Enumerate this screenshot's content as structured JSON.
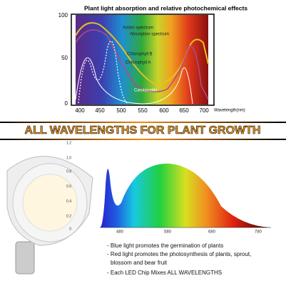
{
  "top_chart": {
    "title": "Plant light absorption and relative photochemical effects",
    "y_labels": [
      "100",
      "50",
      "0"
    ],
    "x_labels": [
      "400",
      "500",
      "600",
      "700"
    ],
    "x_extra_labels": [
      "450",
      "550",
      "650"
    ],
    "x_unit": "Wavelength(nm)",
    "curve_labels": [
      "Action spectrum",
      "Absorption spectrum",
      "Chlorophyll B",
      "Chlorophyll A",
      "Carotenoids"
    ]
  },
  "banner": "ALL WAVELENGTHS FOR PLANT GROWTH",
  "bottom_chart": {
    "y_labels": [
      "1.2",
      "1.0",
      "0.8",
      "0.6",
      "0.4",
      "0.2",
      "0"
    ],
    "x_labels": [
      "480",
      "580",
      "680",
      "780"
    ]
  },
  "bullets": [
    "- Blue light promotes the germination of plants",
    "- Red light promotes the photosynthesis of plants, sprout,",
    "blossom and bear fruit",
    "- Each LED Chip Mixes ALL WAVELENGTHS"
  ]
}
